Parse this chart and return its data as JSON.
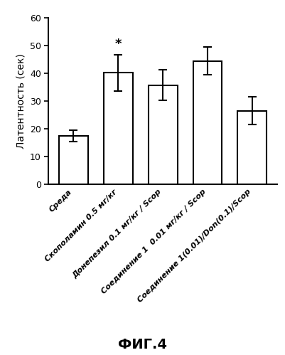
{
  "categories": [
    "Среда",
    "Скополамин 0.5 мг/кг",
    "Донепезил 0.1 мг/кг / Scop",
    "Соединение 1  0.01 мг/кг / Scop",
    "Соединение 1(0.01)/Don(0.1)/Scop"
  ],
  "values": [
    17.5,
    40.2,
    35.8,
    44.5,
    26.5
  ],
  "errors": [
    2.0,
    6.5,
    5.5,
    5.0,
    5.0
  ],
  "ylabel": "Латентность (сек)",
  "ylim": [
    0,
    60
  ],
  "yticks": [
    0,
    10,
    20,
    30,
    40,
    50,
    60
  ],
  "significance_bar": 1,
  "significance_symbol": "*",
  "fig_label": "ФИГ.4",
  "bar_color": "#ffffff",
  "bar_edgecolor": "#000000",
  "bar_linewidth": 1.5,
  "error_color": "#000000",
  "error_linewidth": 1.5,
  "error_capsize": 4,
  "figsize": [
    4.02,
    4.99
  ],
  "dpi": 100
}
